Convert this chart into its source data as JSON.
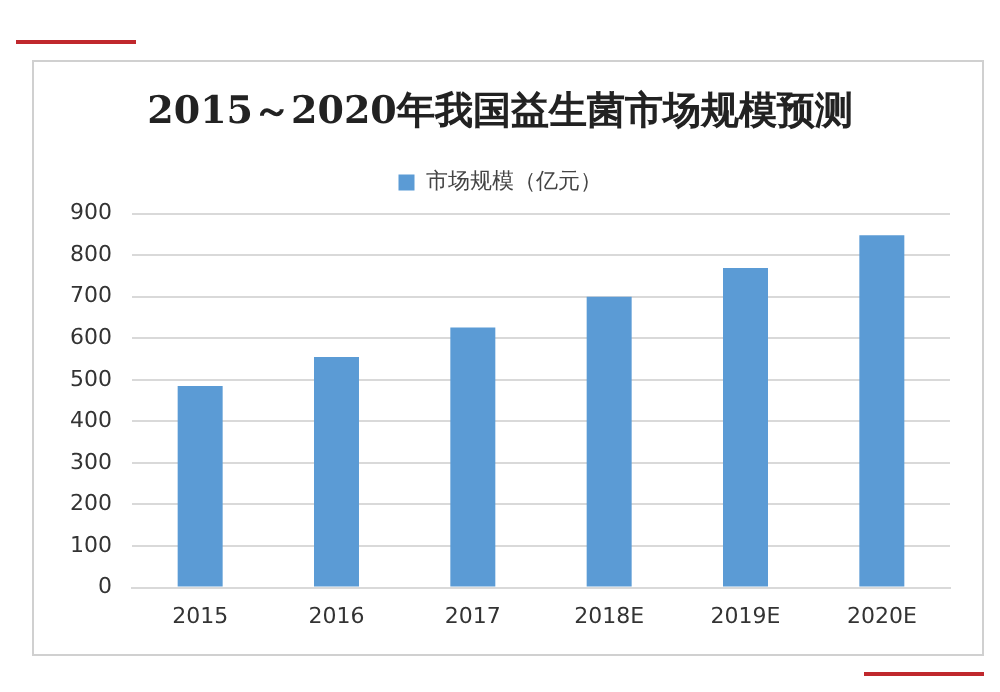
{
  "chart_data": {
    "type": "bar",
    "title": "2015～2020年我国益生菌市场规模预测",
    "categories": [
      "2015",
      "2016",
      "2017",
      "2018E",
      "2019E",
      "2020E"
    ],
    "series": [
      {
        "name": "市场规模（亿元）",
        "color": "#5b9bd5",
        "values": [
          485,
          555,
          626,
          700,
          769,
          848
        ]
      }
    ],
    "ylim": [
      0,
      900
    ],
    "yticks": [
      0,
      100,
      200,
      300,
      400,
      500,
      600,
      700,
      800,
      900
    ],
    "grid": "y",
    "legend": "top"
  }
}
